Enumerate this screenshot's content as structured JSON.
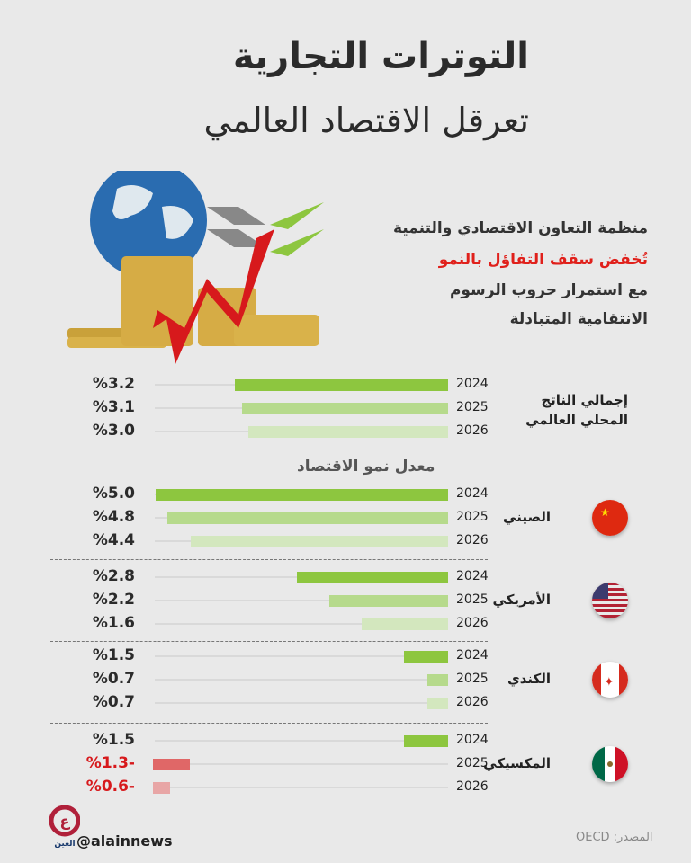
{
  "title": {
    "line1": "التوترات التجارية",
    "line2": "تعرقل الاقتصاد العالمي"
  },
  "subtitle": {
    "line1": "منظمة التعاون الاقتصادي والتنمية",
    "line2": "تُخفض سقف التفاؤل بالنمو",
    "line3": "مع استمرار حروب الرسوم",
    "line4": "الانتقامية المتبادلة"
  },
  "colors": {
    "y2024": "#8dc63f",
    "y2025": "#b6da8c",
    "y2026": "#d3e7be",
    "neg2025": "#e06767",
    "neg2026": "#e8a6a6",
    "accent_red": "#e0201b"
  },
  "chart_data": {
    "type": "bar",
    "orientation": "horizontal",
    "categories": [
      "2024",
      "2025",
      "2026"
    ],
    "heading": "معدل نمو الاقتصاد",
    "groups": [
      {
        "name": "إجمالي الناتج المحلي العالمي",
        "values": [
          3.2,
          3.1,
          3.0
        ],
        "labels": [
          "%3.2",
          "%3.1",
          "%3.0"
        ]
      },
      {
        "name": "الصيني",
        "flag": "china-flag",
        "values": [
          5.0,
          4.8,
          4.4
        ],
        "labels": [
          "%5.0",
          "%4.8",
          "%4.4"
        ]
      },
      {
        "name": "الأمريكي",
        "flag": "usa-flag",
        "values": [
          2.8,
          2.2,
          1.6
        ],
        "labels": [
          "%2.8",
          "%2.2",
          "%1.6"
        ]
      },
      {
        "name": "الكندي",
        "flag": "canada-flag",
        "values": [
          1.5,
          0.7,
          0.7
        ],
        "labels": [
          "%1.5",
          "%0.7",
          "%0.7"
        ]
      },
      {
        "name": "المكسيكي",
        "flag": "mexico-flag",
        "values": [
          1.5,
          -1.3,
          -0.6
        ],
        "labels": [
          "%1.5",
          "%1.3-",
          "%0.6-"
        ]
      }
    ]
  },
  "footer": {
    "handle": "@alainnews",
    "source": "المصدر: OECD",
    "logo_text": "العين"
  }
}
